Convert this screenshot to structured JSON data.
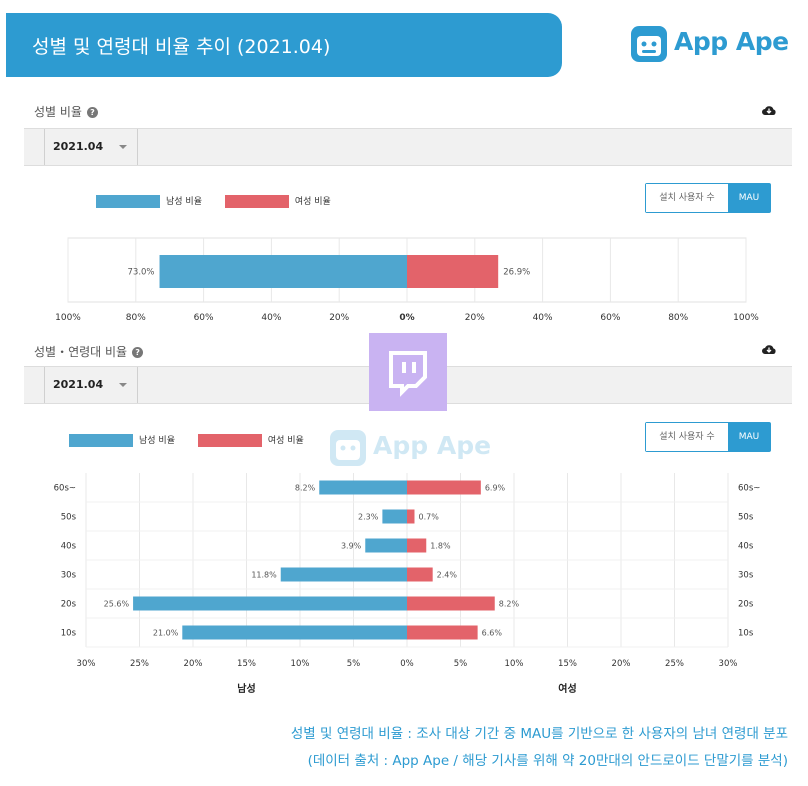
{
  "header": {
    "title": "성별 및 연령대 비율 추이 (2021.04)",
    "logo_text": "App Ape"
  },
  "section1": {
    "title": "성별 비율",
    "period": "2021.04",
    "legend_male": "남성 비율",
    "legend_female": "여성 비율",
    "toggle_install": "설치 사용자 수",
    "toggle_mau": "MAU"
  },
  "section2": {
    "title": "성별・연령대 비율",
    "period": "2021.04",
    "legend_male": "남성 비율",
    "legend_female": "여성 비율",
    "toggle_install": "설치 사용자 수",
    "toggle_mau": "MAU",
    "watermark": "App Ape"
  },
  "captions": {
    "line1": "성별 및 연령대 비율 : 조사 대상 기간 중 MAU를 기반으로 한 사용자의 남녀 연령대 분포",
    "line2": "(데이터 출처 : App Ape / 해당 기사를 위해 약 20만대의 안드로이드 단말기를 분석)"
  },
  "colors": {
    "male": "#4fa6cf",
    "female": "#e3636a",
    "accent": "#2d9bd1"
  },
  "chart_data": [
    {
      "type": "bar",
      "orientation": "horizontal-diverging",
      "categories": [
        ""
      ],
      "series": [
        {
          "name": "남성 비율",
          "values": [
            73.0
          ],
          "labels": [
            "73.0%"
          ]
        },
        {
          "name": "여성 비율",
          "values": [
            26.9
          ],
          "labels": [
            "26.9%"
          ]
        }
      ],
      "xticks": [
        "100%",
        "80%",
        "60%",
        "40%",
        "20%",
        "0%",
        "20%",
        "40%",
        "60%",
        "80%",
        "100%"
      ],
      "xlim": [
        -100,
        100
      ],
      "legend": "top-left",
      "grid": true
    },
    {
      "type": "bar",
      "orientation": "horizontal-diverging",
      "categories": [
        "60s~",
        "50s",
        "40s",
        "30s",
        "20s",
        "10s"
      ],
      "series": [
        {
          "name": "남성 비율",
          "values": [
            8.2,
            2.3,
            3.9,
            11.8,
            25.6,
            21.0
          ],
          "labels": [
            "8.2%",
            "2.3%",
            "3.9%",
            "11.8%",
            "25.6%",
            "21.0%"
          ]
        },
        {
          "name": "여성 비율",
          "values": [
            6.9,
            0.7,
            1.8,
            2.4,
            8.2,
            6.6
          ],
          "labels": [
            "6.9%",
            "0.7%",
            "1.8%",
            "2.4%",
            "8.2%",
            "6.6%"
          ]
        }
      ],
      "xticks": [
        "30%",
        "25%",
        "20%",
        "15%",
        "10%",
        "5%",
        "0%",
        "5%",
        "10%",
        "15%",
        "20%",
        "25%",
        "30%"
      ],
      "xlim": [
        -30,
        30
      ],
      "xlabel_left": "남성",
      "xlabel_right": "여성",
      "legend": "top-left",
      "grid": true
    }
  ]
}
